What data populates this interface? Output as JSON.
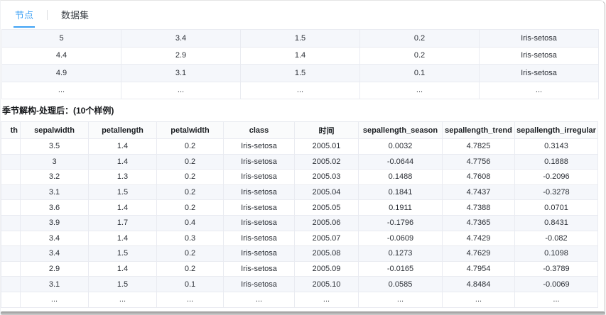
{
  "tabs": {
    "node": "节点",
    "dataset": "数据集"
  },
  "top_table": {
    "rows": [
      [
        "5",
        "3.4",
        "1.5",
        "0.2",
        "Iris-setosa"
      ],
      [
        "4.4",
        "2.9",
        "1.4",
        "0.2",
        "Iris-setosa"
      ],
      [
        "4.9",
        "3.1",
        "1.5",
        "0.1",
        "Iris-setosa"
      ],
      [
        "...",
        "...",
        "...",
        "...",
        "..."
      ]
    ]
  },
  "section_title": "季节解构-处理后：(10个样例)",
  "result_table": {
    "headers": [
      "th",
      "sepalwidth",
      "petallength",
      "petalwidth",
      "class",
      "时间",
      "sepallength_season",
      "sepallength_trend",
      "sepallength_irregular"
    ],
    "rows": [
      [
        "",
        "3.5",
        "1.4",
        "0.2",
        "Iris-setosa",
        "2005.01",
        "0.0032",
        "4.7825",
        "0.3143"
      ],
      [
        "",
        "3",
        "1.4",
        "0.2",
        "Iris-setosa",
        "2005.02",
        "-0.0644",
        "4.7756",
        "0.1888"
      ],
      [
        "",
        "3.2",
        "1.3",
        "0.2",
        "Iris-setosa",
        "2005.03",
        "0.1488",
        "4.7608",
        "-0.2096"
      ],
      [
        "",
        "3.1",
        "1.5",
        "0.2",
        "Iris-setosa",
        "2005.04",
        "0.1841",
        "4.7437",
        "-0.3278"
      ],
      [
        "",
        "3.6",
        "1.4",
        "0.2",
        "Iris-setosa",
        "2005.05",
        "0.1911",
        "4.7388",
        "0.0701"
      ],
      [
        "",
        "3.9",
        "1.7",
        "0.4",
        "Iris-setosa",
        "2005.06",
        "-0.1796",
        "4.7365",
        "0.8431"
      ],
      [
        "",
        "3.4",
        "1.4",
        "0.3",
        "Iris-setosa",
        "2005.07",
        "-0.0609",
        "4.7429",
        "-0.082"
      ],
      [
        "",
        "3.4",
        "1.5",
        "0.2",
        "Iris-setosa",
        "2005.08",
        "0.1273",
        "4.7629",
        "0.1098"
      ],
      [
        "",
        "2.9",
        "1.4",
        "0.2",
        "Iris-setosa",
        "2005.09",
        "-0.0165",
        "4.7954",
        "-0.3789"
      ],
      [
        "",
        "3.1",
        "1.5",
        "0.1",
        "Iris-setosa",
        "2005.10",
        "0.0585",
        "4.8484",
        "-0.0069"
      ],
      [
        "",
        "...",
        "...",
        "...",
        "...",
        "...",
        "...",
        "...",
        "..."
      ]
    ]
  },
  "colors": {
    "accent_blue": "#3da1f5",
    "row_alt_bg": "#f5f7fb",
    "header_bg": "#fafbfc",
    "grid_border": "#e9ebf1"
  }
}
